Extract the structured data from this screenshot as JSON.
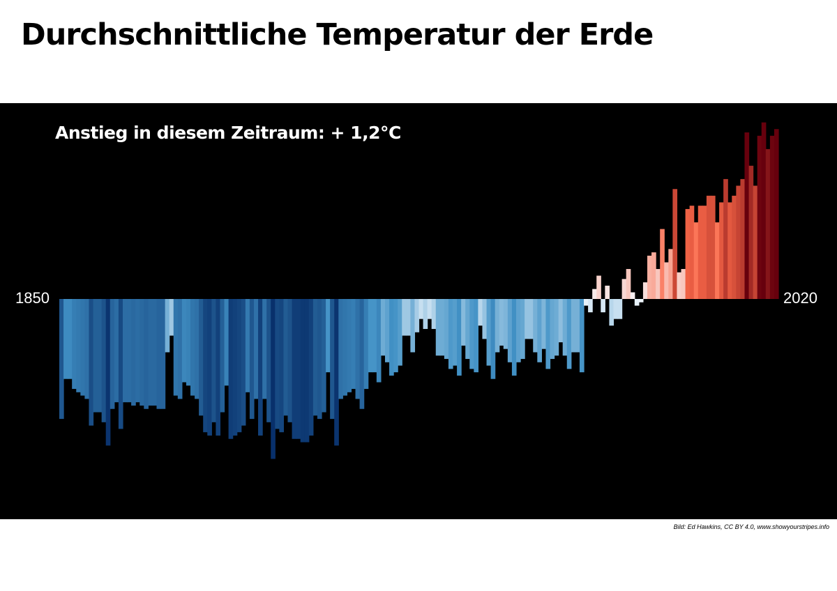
{
  "title": "Durchschnittliche Temperatur der Erde",
  "credit": "Bild: Ed Hawkins, CC BY 4.0, www.showyourstripes.info",
  "chart_data": {
    "type": "bar",
    "annotation": "Anstieg in diesem Zeitraum: + 1,2°C",
    "x_start_label": "1850",
    "x_end_label": "2020",
    "x_start": 1850,
    "x_end": 2020,
    "unit": "°C",
    "ylim": [
      -0.55,
      0.58
    ],
    "colors": {
      "background": "#000000",
      "cold_max": "#08306b",
      "cold_mid": "#4292c6",
      "neutral": "#f7fbff",
      "warm_mid": "#fb6a4a",
      "warm_max": "#67000d"
    },
    "values": [
      -0.36,
      -0.24,
      -0.24,
      -0.27,
      -0.28,
      -0.29,
      -0.3,
      -0.38,
      -0.34,
      -0.34,
      -0.37,
      -0.44,
      -0.33,
      -0.31,
      -0.39,
      -0.31,
      -0.31,
      -0.32,
      -0.31,
      -0.32,
      -0.33,
      -0.32,
      -0.32,
      -0.33,
      -0.33,
      -0.16,
      -0.11,
      -0.29,
      -0.3,
      -0.25,
      -0.26,
      -0.29,
      -0.3,
      -0.35,
      -0.4,
      -0.41,
      -0.37,
      -0.41,
      -0.34,
      -0.26,
      -0.42,
      -0.41,
      -0.4,
      -0.38,
      -0.28,
      -0.36,
      -0.3,
      -0.41,
      -0.3,
      -0.37,
      -0.48,
      -0.39,
      -0.4,
      -0.35,
      -0.37,
      -0.42,
      -0.42,
      -0.43,
      -0.43,
      -0.41,
      -0.35,
      -0.36,
      -0.34,
      -0.22,
      -0.36,
      -0.44,
      -0.3,
      -0.29,
      -0.28,
      -0.27,
      -0.3,
      -0.33,
      -0.27,
      -0.22,
      -0.22,
      -0.25,
      -0.17,
      -0.19,
      -0.23,
      -0.22,
      -0.2,
      -0.11,
      -0.11,
      -0.16,
      -0.1,
      -0.06,
      -0.09,
      -0.06,
      -0.09,
      -0.17,
      -0.17,
      -0.18,
      -0.21,
      -0.2,
      -0.23,
      -0.14,
      -0.18,
      -0.21,
      -0.22,
      -0.08,
      -0.12,
      -0.2,
      -0.24,
      -0.16,
      -0.14,
      -0.15,
      -0.19,
      -0.23,
      -0.19,
      -0.18,
      -0.12,
      -0.12,
      -0.16,
      -0.19,
      -0.15,
      -0.21,
      -0.18,
      -0.17,
      -0.13,
      -0.17,
      -0.21,
      -0.16,
      -0.16,
      -0.22,
      -0.02,
      -0.04,
      0.03,
      0.07,
      -0.04,
      0.04,
      -0.08,
      -0.06,
      -0.06,
      0.06,
      0.09,
      0.02,
      -0.02,
      -0.01,
      0.05,
      0.13,
      0.14,
      0.09,
      0.21,
      0.11,
      0.15,
      0.33,
      0.08,
      0.09,
      0.27,
      0.28,
      0.23,
      0.28,
      0.28,
      0.31,
      0.31,
      0.23,
      0.29,
      0.36,
      0.29,
      0.31,
      0.34,
      0.36,
      0.5,
      0.4,
      0.34,
      0.49,
      0.53,
      0.45,
      0.49,
      0.51
    ]
  }
}
